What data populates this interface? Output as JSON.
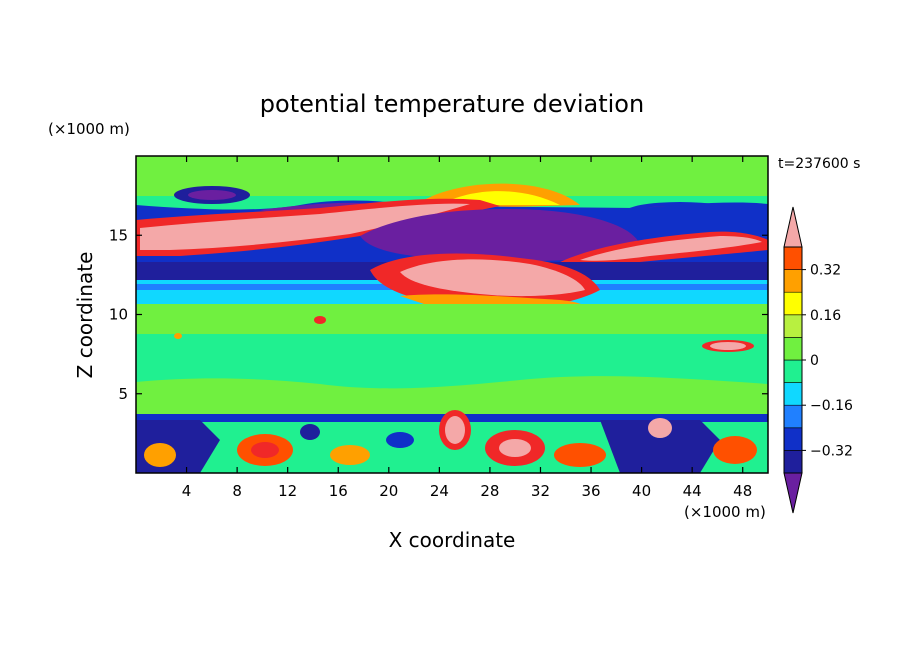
{
  "chart_data": {
    "type": "heatmap",
    "title": "potential temperature deviation",
    "time_label": "t=237600 s",
    "xlabel": "X coordinate",
    "ylabel": "Z coordinate",
    "x_unit": "(×1000 m)",
    "y_unit": "(×1000 m)",
    "xlim": [
      0,
      50
    ],
    "ylim": [
      0,
      20
    ],
    "x_ticks": [
      4,
      8,
      12,
      16,
      20,
      24,
      28,
      32,
      36,
      40,
      44,
      48
    ],
    "y_ticks": [
      5,
      10,
      15
    ],
    "colorbar": {
      "labels": [
        0.32,
        0.16,
        0,
        -0.16,
        -0.32
      ],
      "label_text": [
        "0.32",
        "0.16",
        "0",
        "−0.16",
        "−0.32"
      ],
      "levels": [
        -0.4,
        -0.32,
        -0.24,
        -0.16,
        -0.08,
        0,
        0.08,
        0.16,
        0.24,
        0.32,
        0.4
      ],
      "colors": [
        "#6a1fa0",
        "#1f1f9c",
        "#1030c8",
        "#2080ff",
        "#10d8ff",
        "#20f090",
        "#70f040",
        "#b8f040",
        "#ffff00",
        "#ffa000",
        "#ff5000",
        "#f02828",
        "#f4a8a8"
      ]
    }
  }
}
